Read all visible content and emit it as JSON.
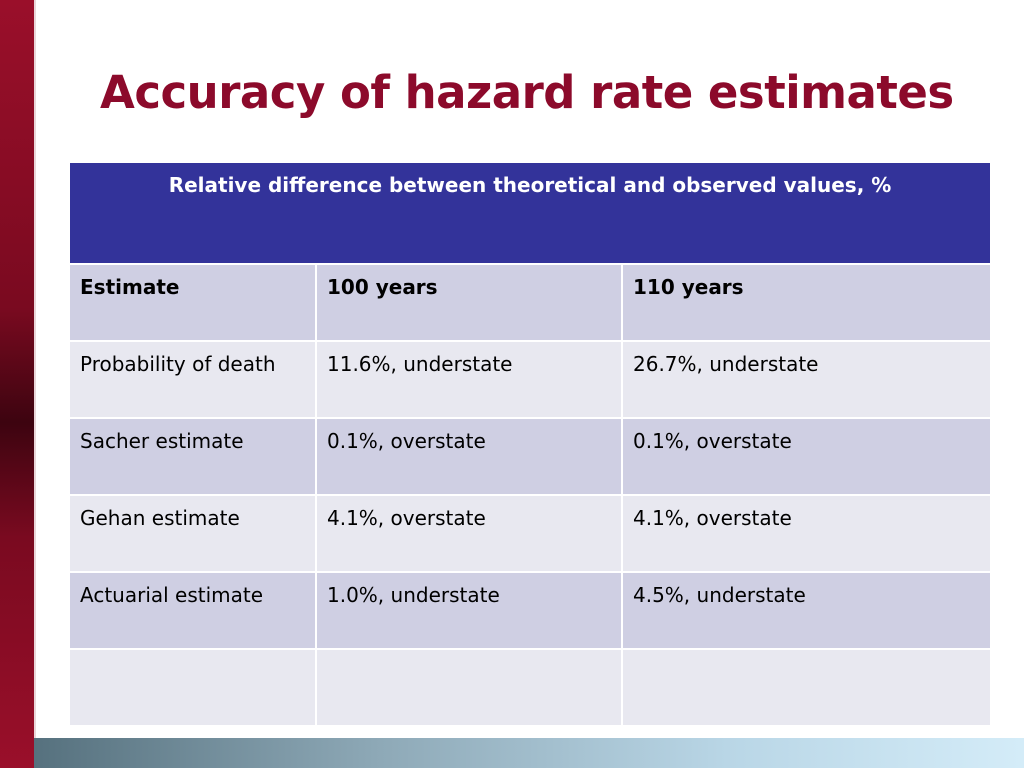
{
  "title": "Accuracy of hazard rate estimates",
  "table": {
    "caption": "Relative difference between theoretical and observed values, %",
    "headers": [
      "Estimate",
      "100 years",
      "110 years"
    ],
    "rows": [
      [
        "Probability of death",
        "11.6%, understate",
        "26.7%, understate"
      ],
      [
        "Sacher estimate",
        "0.1%, overstate",
        "0.1%, overstate"
      ],
      [
        "Gehan estimate",
        "4.1%, overstate",
        "4.1%, overstate"
      ],
      [
        "Actuarial estimate",
        "1.0%, understate",
        "4.5%, understate"
      ],
      [
        "",
        "",
        ""
      ]
    ]
  },
  "colors": {
    "title": "#8c0a2b",
    "caption_bg": "#33339a",
    "row_dark": "#cfcfe3",
    "row_light": "#e8e8f0",
    "left_bar": "#7a0a20"
  }
}
